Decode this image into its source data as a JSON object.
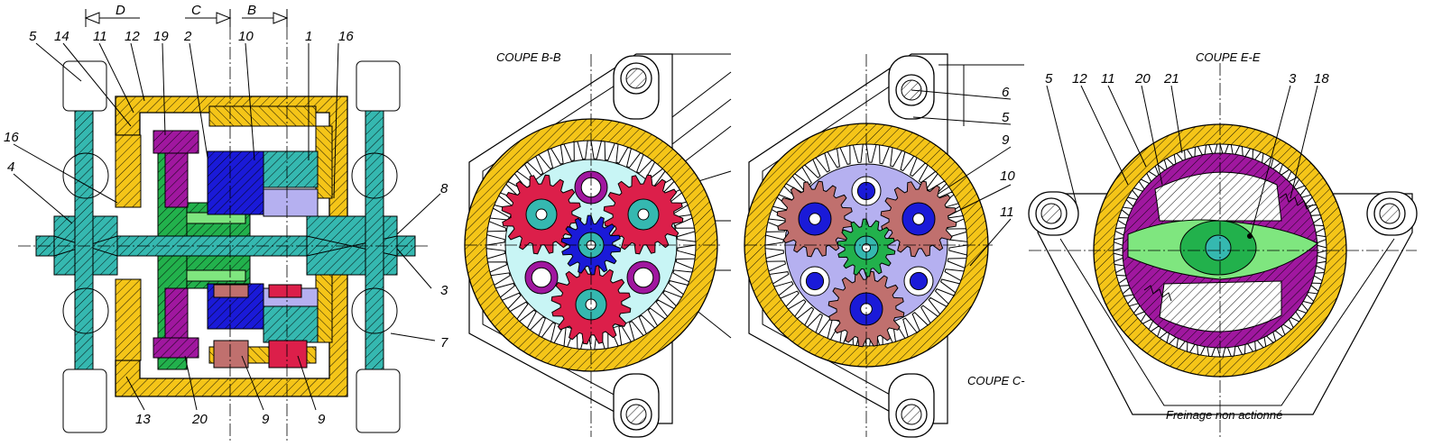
{
  "colors": {
    "yellow": "#f5c518",
    "teal": "#35b8b0",
    "green": "#22b14c",
    "lightgreen": "#7fe67f",
    "blue": "#1a1ad8",
    "lavender": "#b5b0f0",
    "purple": "#a0179f",
    "red": "#dc1f4a",
    "brown": "#c0706e",
    "pink": "#e03a62",
    "cyan": "#c8f5f5",
    "white": "#ffffff"
  },
  "section_marks": {
    "d": "D",
    "c": "C",
    "b": "B"
  },
  "left_view": {
    "top_labels": [
      "5",
      "14",
      "11",
      "12",
      "19",
      "2",
      "10",
      "1",
      "16"
    ],
    "left_labels": [
      "16",
      "4"
    ],
    "right_labels": [
      "8",
      "3",
      "7"
    ],
    "bottom_labels": [
      "13",
      "20",
      "9",
      "9"
    ]
  },
  "view_bb": {
    "title": "COUPE B-B"
  },
  "view_cc": {
    "title": "COUPE C-",
    "labels": [
      "6",
      "5",
      "9",
      "10",
      "11"
    ]
  },
  "view_ee": {
    "title": "COUPE E-E",
    "labels": [
      "5",
      "12",
      "11",
      "20",
      "21",
      "3",
      "18"
    ],
    "caption": "Freinage non actionné"
  }
}
